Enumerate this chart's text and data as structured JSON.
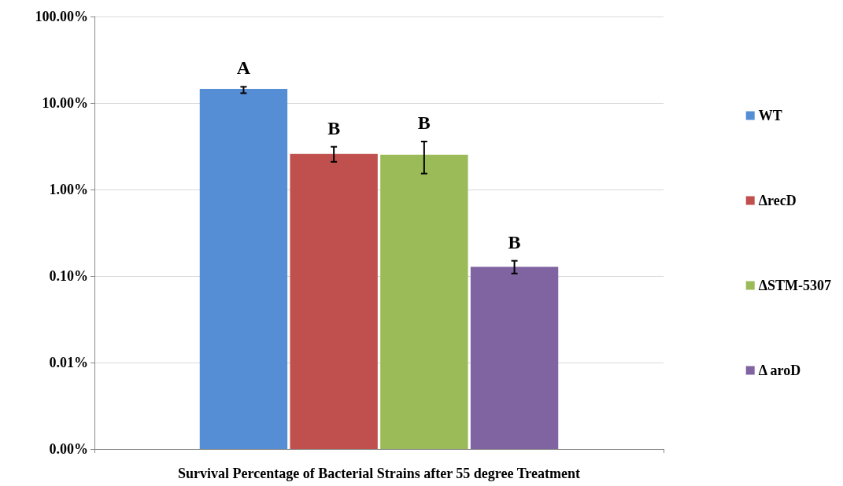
{
  "chart_data": {
    "type": "bar",
    "xlabel": "Survival Percentage of Bacterial Strains after 55 degree Treatment",
    "categories": [
      null
    ],
    "series": [
      {
        "name": "WT",
        "color": "#558ed5",
        "values": [
          14.6
        ],
        "errors": [
          [
            13.0,
            15.4
          ]
        ],
        "value_labels": [
          "A"
        ]
      },
      {
        "name": "ΔrecD",
        "color": "#c0504d",
        "values": [
          2.58
        ],
        "errors": [
          [
            2.09,
            3.12
          ]
        ],
        "value_labels": [
          "B"
        ]
      },
      {
        "name": "ΔSTM-5307",
        "color": "#9bbb59",
        "values": [
          2.53
        ],
        "errors": [
          [
            1.53,
            3.59
          ]
        ],
        "value_labels": [
          "B"
        ]
      },
      {
        "name": "Δ aroD",
        "color": "#8064a2",
        "values": [
          0.128
        ],
        "errors": [
          [
            0.107,
            0.15
          ]
        ],
        "value_labels": [
          "B"
        ]
      }
    ],
    "log": "y",
    "ylim": [
      0.001,
      100
    ],
    "yticks": [
      {
        "value": 0.001,
        "label": "0.00%"
      },
      {
        "value": 0.01,
        "label": "0.01%"
      },
      {
        "value": 0.1,
        "label": "0.10%"
      },
      {
        "value": 1,
        "label": "1.00%"
      },
      {
        "value": 10,
        "label": "10.00%"
      },
      {
        "value": 100,
        "label": "100.00%"
      }
    ],
    "grid": "y",
    "legend": "right"
  }
}
